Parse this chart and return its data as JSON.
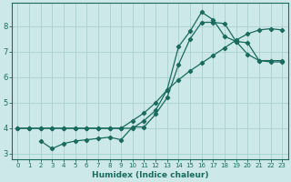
{
  "xlabel": "Humidex (Indice chaleur)",
  "bg_color": "#cce8e8",
  "line_color": "#1a6b5e",
  "grid_color": "#aacfcf",
  "ylim": [
    2.8,
    8.9
  ],
  "xlim": [
    -0.5,
    23.5
  ],
  "line1_x": [
    0,
    1,
    2,
    3,
    4,
    5,
    6,
    7,
    8,
    9,
    10,
    11,
    12,
    13,
    14,
    15,
    16,
    17,
    18,
    19,
    20,
    21,
    22,
    23
  ],
  "line1_y": [
    4.0,
    4.0,
    4.0,
    4.0,
    4.0,
    4.0,
    4.0,
    4.0,
    4.0,
    4.0,
    4.0,
    4.3,
    4.7,
    5.5,
    7.2,
    7.8,
    8.55,
    8.25,
    7.6,
    7.4,
    6.9,
    6.65,
    6.65,
    6.65
  ],
  "line2_x": [
    2,
    3,
    4,
    5,
    6,
    7,
    8,
    9,
    10,
    11,
    12,
    13,
    14,
    15,
    16,
    17,
    18,
    19,
    20,
    21,
    22,
    23
  ],
  "line2_y": [
    3.5,
    3.2,
    3.4,
    3.5,
    3.55,
    3.6,
    3.65,
    3.55,
    4.05,
    4.05,
    4.55,
    5.2,
    6.5,
    7.5,
    8.15,
    8.15,
    8.1,
    7.4,
    7.35,
    6.65,
    6.6,
    6.6
  ],
  "line3_x": [
    0,
    1,
    2,
    3,
    4,
    5,
    6,
    7,
    8,
    9,
    10,
    11,
    12,
    13,
    14,
    15,
    16,
    17,
    18,
    19,
    20,
    21,
    22,
    23
  ],
  "line3_y": [
    4.0,
    4.0,
    4.0,
    4.0,
    4.0,
    4.0,
    4.0,
    4.0,
    4.0,
    4.0,
    4.3,
    4.6,
    5.0,
    5.5,
    5.9,
    6.25,
    6.55,
    6.85,
    7.15,
    7.45,
    7.7,
    7.85,
    7.9,
    7.85
  ],
  "yticks": [
    3,
    4,
    5,
    6,
    7,
    8
  ],
  "xticks": [
    0,
    1,
    2,
    3,
    4,
    5,
    6,
    7,
    8,
    9,
    10,
    11,
    12,
    13,
    14,
    15,
    16,
    17,
    18,
    19,
    20,
    21,
    22,
    23
  ],
  "marker": "D",
  "markersize": 2.2,
  "linewidth": 0.9
}
